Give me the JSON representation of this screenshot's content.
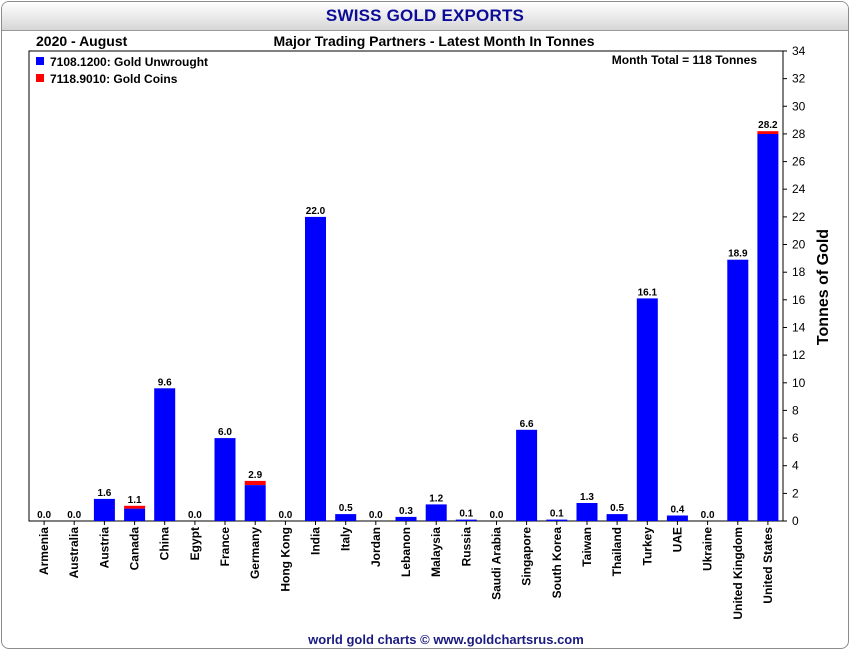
{
  "title": "SWISS GOLD EXPORTS",
  "period_label": "2020 - August",
  "subtitle": "Major Trading Partners - Latest Month In Tonnes",
  "month_total": "Month Total = 118 Tonnes",
  "footer": "world gold charts © www.goldchartsrus.com",
  "colors": {
    "title": "#0c0c99",
    "unwrought": "#0000ff",
    "coins": "#ff0000",
    "footer": "#1a1a80"
  },
  "chart_data": {
    "type": "bar",
    "stacked": true,
    "ylabel": "Tonnes of Gold",
    "ylim": [
      0,
      34
    ],
    "yticks": [
      "0",
      "2",
      "4",
      "6",
      "8",
      "10",
      "12",
      "14",
      "16",
      "18",
      "20",
      "22",
      "24",
      "26",
      "28",
      "30",
      "32",
      "34"
    ],
    "y_axis_side": "right",
    "grid": false,
    "legend_position": "top-left",
    "categories": [
      "Armenia",
      "Australia",
      "Austria",
      "Canada",
      "China",
      "Egypt",
      "France",
      "Germany",
      "Hong Kong",
      "India",
      "Italy",
      "Jordan",
      "Lebanon",
      "Malaysia",
      "Russia",
      "Saudi Arabia",
      "Singapore",
      "South Korea",
      "Taiwan",
      "Thailand",
      "Turkey",
      "UAE",
      "Ukraine",
      "United Kingdom",
      "United States"
    ],
    "series": [
      {
        "name": "7108.1200: Gold Unwrought",
        "color": "#0000ff",
        "values": [
          0.0,
          0.0,
          1.6,
          0.9,
          9.6,
          0.0,
          6.0,
          2.6,
          0.0,
          22.0,
          0.5,
          0.0,
          0.3,
          1.2,
          0.1,
          0.0,
          6.6,
          0.1,
          1.3,
          0.5,
          16.1,
          0.4,
          0.0,
          18.9,
          28.0
        ]
      },
      {
        "name": "7118.9010: Gold Coins",
        "color": "#ff0000",
        "values": [
          0.0,
          0.0,
          0.0,
          0.2,
          0.0,
          0.0,
          0.0,
          0.3,
          0.0,
          0.0,
          0.0,
          0.0,
          0.0,
          0.0,
          0.0,
          0.0,
          0.0,
          0.0,
          0.0,
          0.0,
          0.0,
          0.0,
          0.0,
          0.0,
          0.2
        ]
      }
    ],
    "data_labels": [
      "0.0",
      "0.0",
      "1.6",
      "1.1",
      "9.6",
      "0.0",
      "6.0",
      "2.9",
      "0.0",
      "22.0",
      "0.5",
      "0.0",
      "0.3",
      "1.2",
      "0.1",
      "0.0",
      "6.6",
      "0.1",
      "1.3",
      "0.5",
      "16.1",
      "0.4",
      "0.0",
      "18.9",
      "28.2"
    ]
  }
}
